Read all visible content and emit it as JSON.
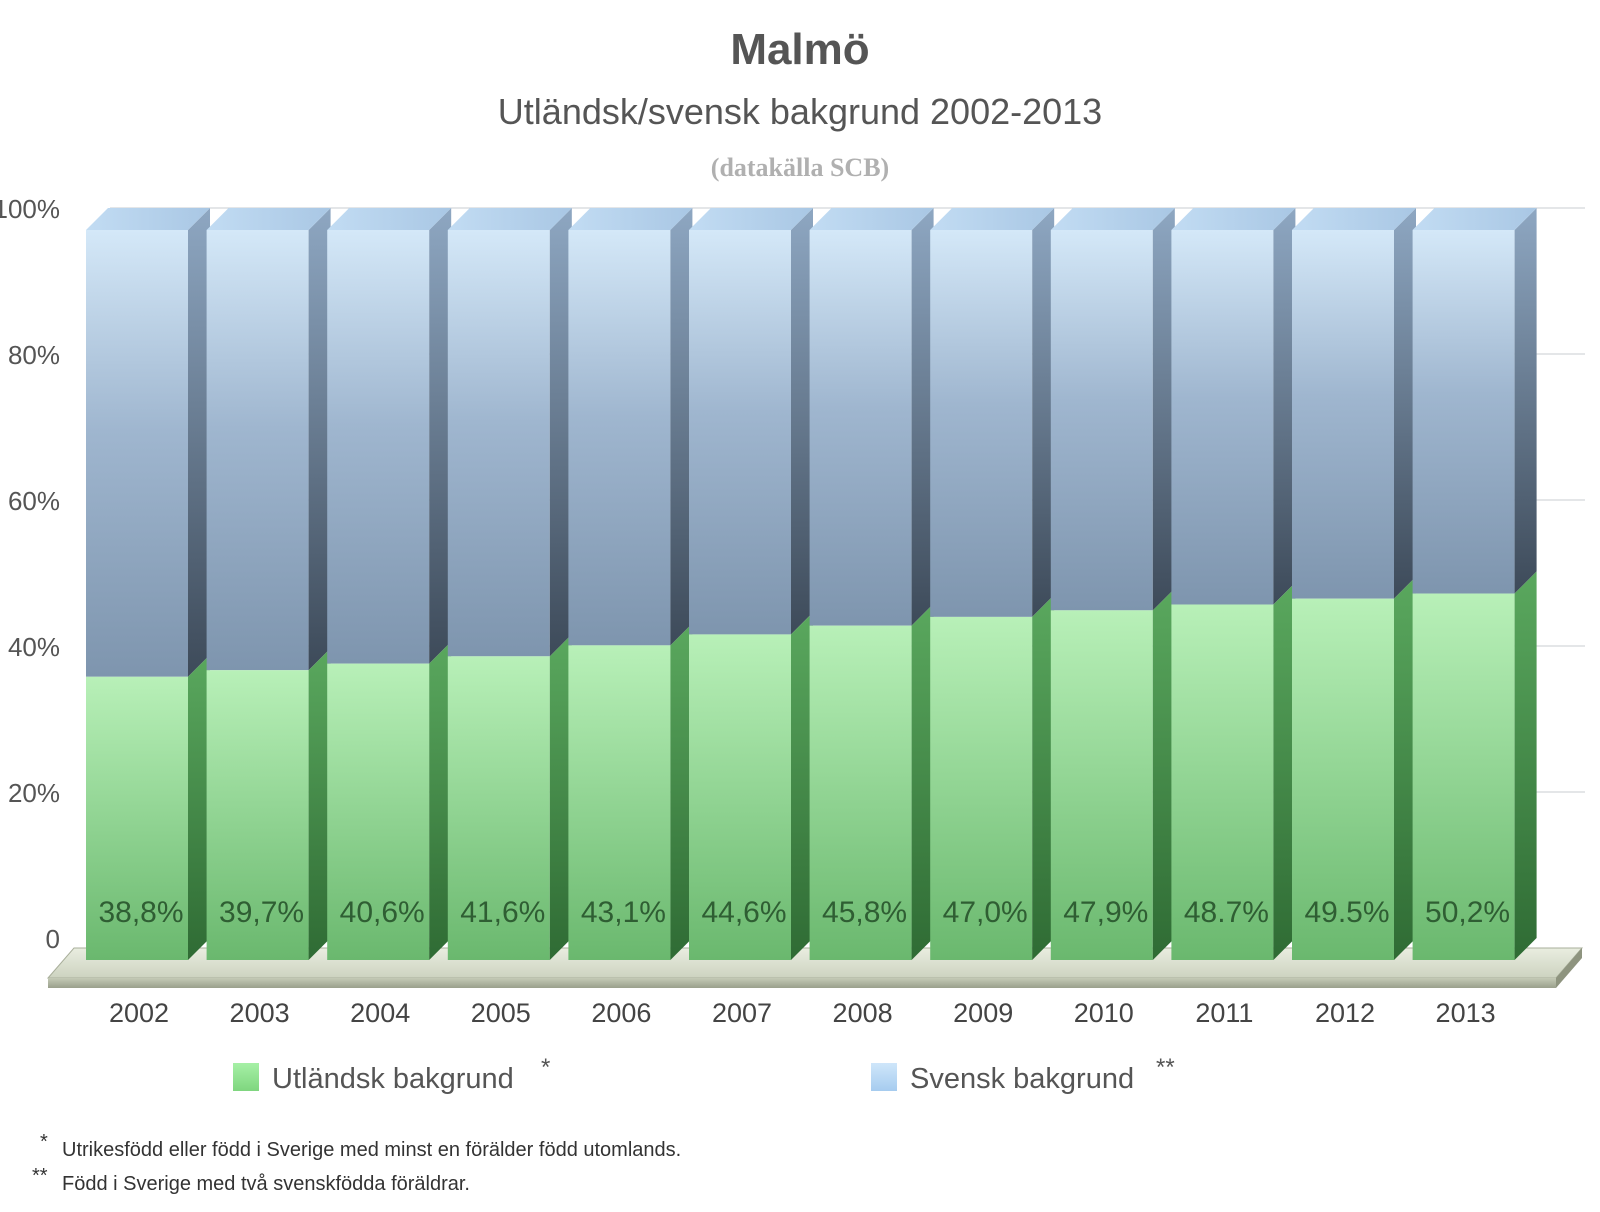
{
  "chart_data": {
    "type": "bar",
    "stacked": true,
    "three_d": true,
    "title": "Malmö",
    "subtitle": "Utländsk/svensk bakgrund 2002-2013",
    "source": "(datakälla SCB)",
    "categories": [
      "2002",
      "2003",
      "2004",
      "2005",
      "2006",
      "2007",
      "2008",
      "2009",
      "2010",
      "2011",
      "2012",
      "2013"
    ],
    "series": [
      {
        "name": "Utländsk bakgrund",
        "marker": "*",
        "color": "#8fe08f",
        "values": [
          38.8,
          39.7,
          40.6,
          41.6,
          43.1,
          44.6,
          45.8,
          47.0,
          47.9,
          48.7,
          49.5,
          50.2
        ],
        "labels": [
          "38,8%",
          "39,7%",
          "40,6%",
          "41,6%",
          "43,1%",
          "44,6%",
          "45,8%",
          "47,0%",
          "47,9%",
          "48.7%",
          "49.5%",
          "50,2%"
        ]
      },
      {
        "name": "Svensk bakgrund",
        "marker": "**",
        "color": "#b3d6f5",
        "values": [
          61.2,
          60.3,
          59.4,
          58.4,
          56.9,
          55.4,
          54.2,
          53.0,
          52.1,
          51.3,
          50.5,
          49.8
        ]
      }
    ],
    "yticks": [
      "0",
      "20%",
      "40%",
      "60%",
      "80%",
      "100%"
    ],
    "ylim": [
      0,
      100
    ],
    "grid": true,
    "legend_position": "bottom",
    "footnotes": [
      {
        "marker": "*",
        "text": "Utrikesfödd eller född i Sverige med minst en förälder född utomlands."
      },
      {
        "marker": "**",
        "text": "Född i Sverige med två svenskfödda föräldrar."
      }
    ]
  }
}
